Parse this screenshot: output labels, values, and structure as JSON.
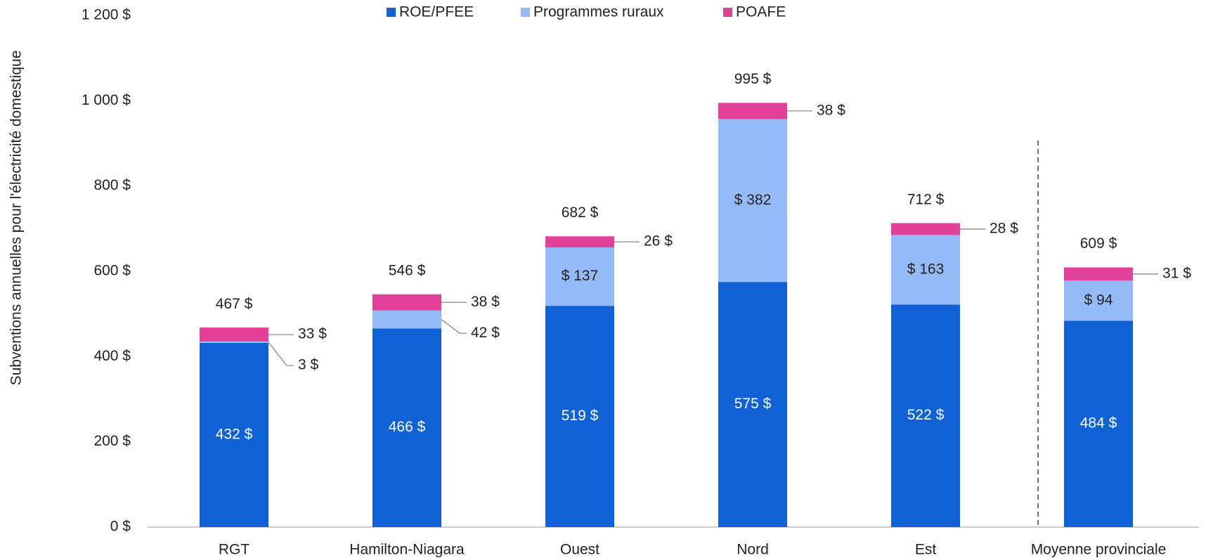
{
  "chart_data": {
    "type": "stacked_bar",
    "ylabel": "Subventions annuelles pour l'électricité domestique",
    "categories": [
      "RGT",
      "Hamilton-Niagara",
      "Ouest",
      "Nord",
      "Est",
      "Moyenne provinciale"
    ],
    "series": [
      {
        "name": "ROE/PFEE",
        "color": "#1161d6",
        "values": [
          432,
          466,
          519,
          575,
          522,
          484
        ],
        "value_labels": [
          "432 $",
          "466 $",
          "519 $",
          "575 $",
          "522 $",
          "484 $"
        ]
      },
      {
        "name": "Programmes ruraux",
        "color": "#94bbf7",
        "values": [
          3,
          42,
          137,
          382,
          163,
          94
        ],
        "value_labels": [
          "3 $",
          "42 $",
          "$ 137",
          "$ 382",
          "$ 163",
          "$ 94"
        ]
      },
      {
        "name": "POAFE",
        "color": "#e3409a",
        "values": [
          33,
          38,
          26,
          38,
          28,
          31
        ],
        "value_labels": [
          "33 $",
          "38 $",
          "26 $",
          "38 $",
          "28 $",
          "31 $"
        ]
      }
    ],
    "totals": {
      "values": [
        467,
        546,
        682,
        995,
        712,
        609
      ],
      "value_labels": [
        "467 $",
        "546 $",
        "682 $",
        "995 $",
        "712 $",
        "609 $"
      ]
    },
    "ylim": [
      0,
      1200
    ],
    "yticks": [
      {
        "value": 0,
        "label": "0 $"
      },
      {
        "value": 200,
        "label": "200 $"
      },
      {
        "value": 400,
        "label": "400 $"
      },
      {
        "value": 600,
        "label": "600 $"
      },
      {
        "value": 800,
        "label": "800 $"
      },
      {
        "value": 1000,
        "label": "1 000 $"
      },
      {
        "value": 1200,
        "label": "1 200 $"
      }
    ],
    "legend": "top",
    "grid": false
  }
}
